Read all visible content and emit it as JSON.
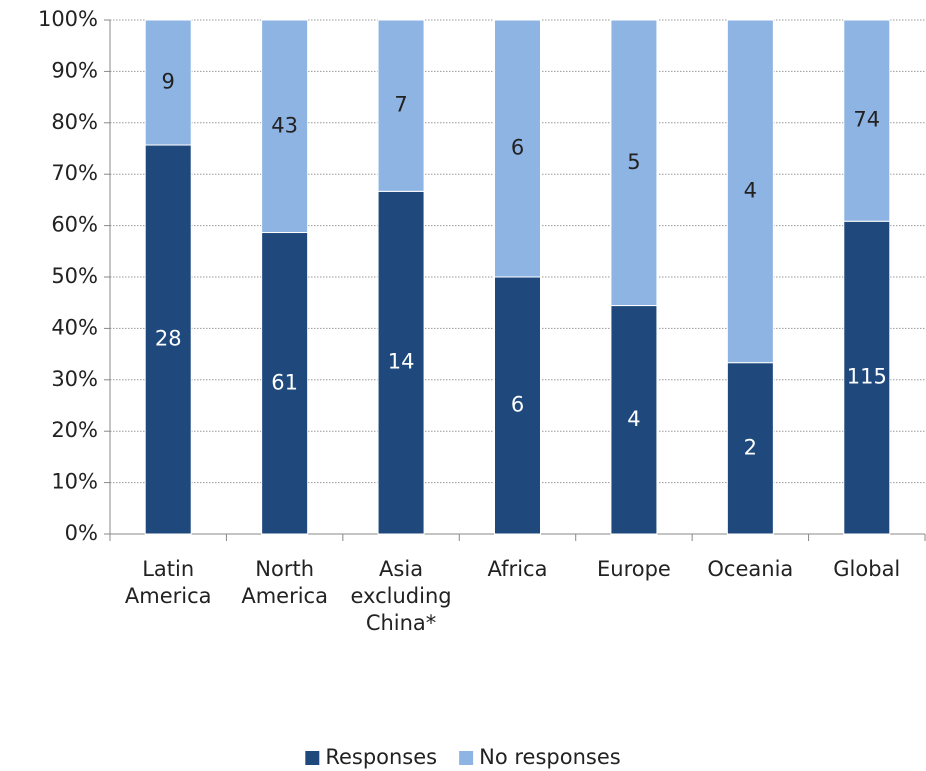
{
  "chart_data": {
    "type": "bar",
    "stacking": "percent",
    "categories": [
      "Latin America",
      "North America",
      "Asia excluding China*",
      "Africa",
      "Europe",
      "Oceania",
      "Global"
    ],
    "series": [
      {
        "name": "Responses",
        "color": "#1f497d",
        "values": [
          28,
          61,
          14,
          6,
          4,
          2,
          115
        ]
      },
      {
        "name": "No responses",
        "color": "#8eb4e3",
        "values": [
          9,
          43,
          7,
          6,
          5,
          4,
          74
        ]
      }
    ],
    "ylim": [
      0,
      100
    ],
    "yticks": [
      {
        "value": 0,
        "label": "0%"
      },
      {
        "value": 10,
        "label": "10%"
      },
      {
        "value": 20,
        "label": "20%"
      },
      {
        "value": 30,
        "label": "30%"
      },
      {
        "value": 40,
        "label": "40%"
      },
      {
        "value": 50,
        "label": "50%"
      },
      {
        "value": 60,
        "label": "60%"
      },
      {
        "value": 70,
        "label": "70%"
      },
      {
        "value": 80,
        "label": "80%"
      },
      {
        "value": 90,
        "label": "90%"
      },
      {
        "value": 100,
        "label": "100%"
      }
    ],
    "grid": true,
    "legend": "bottom"
  }
}
